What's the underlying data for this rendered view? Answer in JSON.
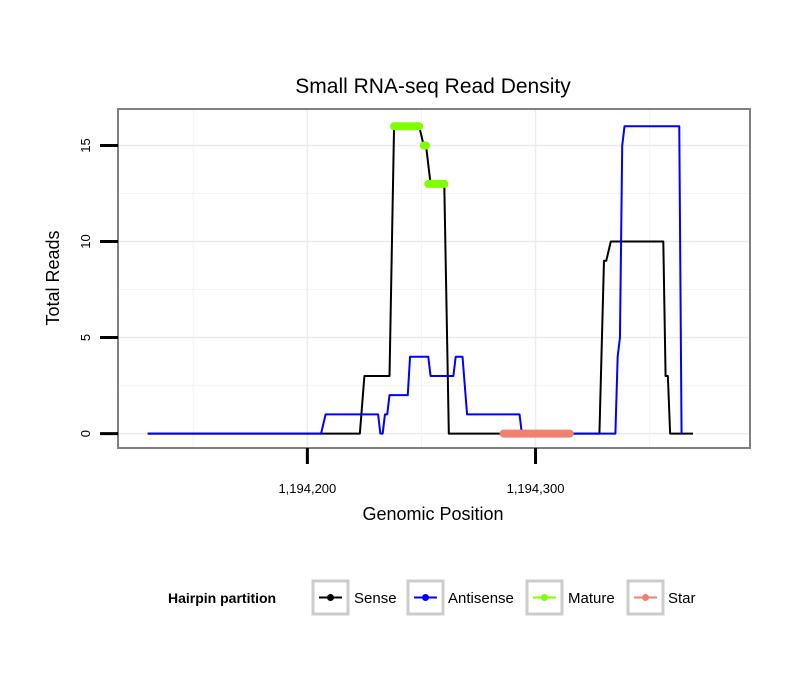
{
  "chart_data": {
    "type": "line",
    "title": "Small RNA-seq Read Density",
    "xlabel": "Genomic Position",
    "ylabel": "Total Reads",
    "xlim": [
      1194117,
      1194394
    ],
    "ylim": [
      -0.75,
      16.9
    ],
    "x_ticks": [
      1194200,
      1194300
    ],
    "x_tick_labels": [
      "1,194,200",
      "1,194,300"
    ],
    "y_ticks": [
      0,
      5,
      10,
      15
    ],
    "y_tick_labels": [
      "0",
      "5",
      "10",
      "15"
    ],
    "grid": true,
    "legend": {
      "title": "Hairpin partition",
      "position": "bottom",
      "entries": [
        {
          "name": "Sense",
          "color": "#000000"
        },
        {
          "name": "Antisense",
          "color": "#0000ff"
        },
        {
          "name": "Mature",
          "color": "#7fff00"
        },
        {
          "name": "Star",
          "color": "#f08070"
        }
      ]
    },
    "series": [
      {
        "name": "Sense",
        "color": "#000000",
        "style": "line",
        "points": [
          [
            1194130,
            0
          ],
          [
            1194220,
            0
          ],
          [
            1194223,
            0
          ],
          [
            1194225,
            3
          ],
          [
            1194236,
            3
          ],
          [
            1194238,
            16
          ],
          [
            1194249,
            16
          ],
          [
            1194251,
            15
          ],
          [
            1194252,
            15
          ],
          [
            1194254,
            13
          ],
          [
            1194260,
            13
          ],
          [
            1194262,
            0
          ],
          [
            1194328,
            0
          ],
          [
            1194330,
            9
          ],
          [
            1194331,
            9
          ],
          [
            1194333,
            10
          ],
          [
            1194356,
            10
          ],
          [
            1194357,
            3
          ],
          [
            1194358,
            3
          ],
          [
            1194359,
            0
          ],
          [
            1194369,
            0
          ]
        ]
      },
      {
        "name": "Antisense",
        "color": "#0000ff",
        "style": "line",
        "points": [
          [
            1194130,
            0
          ],
          [
            1194206,
            0
          ],
          [
            1194208,
            1
          ],
          [
            1194231,
            1
          ],
          [
            1194232,
            0
          ],
          [
            1194233,
            0
          ],
          [
            1194234,
            1
          ],
          [
            1194235,
            1
          ],
          [
            1194236,
            2
          ],
          [
            1194239,
            2
          ],
          [
            1194244,
            2
          ],
          [
            1194245,
            4
          ],
          [
            1194253,
            4
          ],
          [
            1194254,
            3
          ],
          [
            1194264,
            3
          ],
          [
            1194265,
            4
          ],
          [
            1194268,
            4
          ],
          [
            1194270,
            1
          ],
          [
            1194293,
            1
          ],
          [
            1194294,
            0
          ],
          [
            1194335,
            0
          ],
          [
            1194336,
            4
          ],
          [
            1194337,
            5
          ],
          [
            1194338,
            15
          ],
          [
            1194339,
            16
          ],
          [
            1194363,
            16
          ],
          [
            1194364,
            0
          ]
        ]
      },
      {
        "name": "Mature",
        "color": "#7fff00",
        "style": "points",
        "segments": [
          [
            1194238,
            1194249,
            16
          ],
          [
            1194251,
            1194252,
            15
          ],
          [
            1194253,
            1194260,
            13
          ]
        ]
      },
      {
        "name": "Star",
        "color": "#f08070",
        "style": "points",
        "segments": [
          [
            1194286,
            1194315,
            0
          ]
        ]
      }
    ]
  }
}
